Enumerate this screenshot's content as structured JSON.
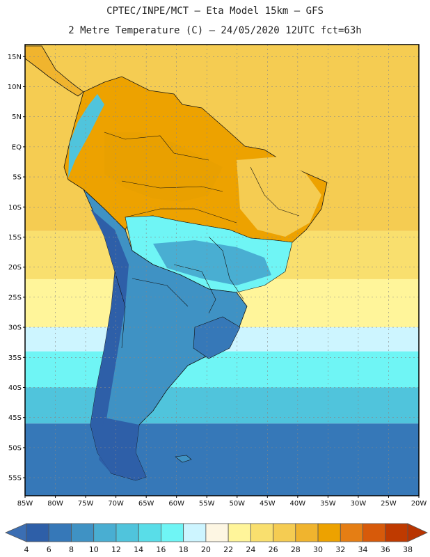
{
  "title_line1": "CPTEC/INPE/MCT –  Eta Model 15km – GFS",
  "title_line2": "2 Metre Temperature (C) – 24/05/2020 12UTC fct=63h",
  "map": {
    "lon_range": [
      -85,
      -20
    ],
    "lat_range": [
      -58,
      17
    ],
    "lat_ticks": [
      "15N",
      "10N",
      "5N",
      "EQ",
      "5S",
      "10S",
      "15S",
      "20S",
      "25S",
      "30S",
      "35S",
      "40S",
      "45S",
      "50S",
      "55S"
    ],
    "lat_values": [
      15,
      10,
      5,
      0,
      -5,
      -10,
      -15,
      -20,
      -25,
      -30,
      -35,
      -40,
      -45,
      -50,
      -55
    ],
    "lon_ticks": [
      "85W",
      "80W",
      "75W",
      "70W",
      "65W",
      "60W",
      "55W",
      "50W",
      "45W",
      "40W",
      "35W",
      "30W",
      "25W",
      "20W"
    ],
    "lon_values": [
      -85,
      -80,
      -75,
      -70,
      -65,
      -60,
      -55,
      -50,
      -45,
      -40,
      -35,
      -30,
      -25,
      -20
    ],
    "ocean_bands": [
      {
        "lat_top": 17,
        "lat_bottom": -14,
        "temp": 27
      },
      {
        "lat_top": -14,
        "lat_bottom": -22,
        "temp": 25
      },
      {
        "lat_top": -22,
        "lat_bottom": -30,
        "temp": 23
      },
      {
        "lat_top": -30,
        "lat_bottom": -34,
        "temp": 19
      },
      {
        "lat_top": -34,
        "lat_bottom": -40,
        "temp": 17
      },
      {
        "lat_top": -40,
        "lat_bottom": -46,
        "temp": 13
      },
      {
        "lat_top": -46,
        "lat_bottom": -58,
        "temp": 7
      }
    ]
  },
  "colorbar": {
    "labels": [
      "4",
      "6",
      "8",
      "10",
      "12",
      "14",
      "16",
      "18",
      "20",
      "22",
      "24",
      "26",
      "28",
      "30",
      "32",
      "34",
      "36",
      "38"
    ],
    "low_color": "#3b6eb3",
    "high_color": "#b83400",
    "colors": [
      "#2e5fa8",
      "#3678b8",
      "#3f92c4",
      "#49aed2",
      "#50c4dc",
      "#59dde8",
      "#6ff5f5",
      "#cdf5ff",
      "#fdf6e3",
      "#fff59a",
      "#f9df6e",
      "#f5cc52",
      "#f0b42e",
      "#eda200",
      "#e57e14",
      "#d75a0a",
      "#bf3a00"
    ]
  }
}
